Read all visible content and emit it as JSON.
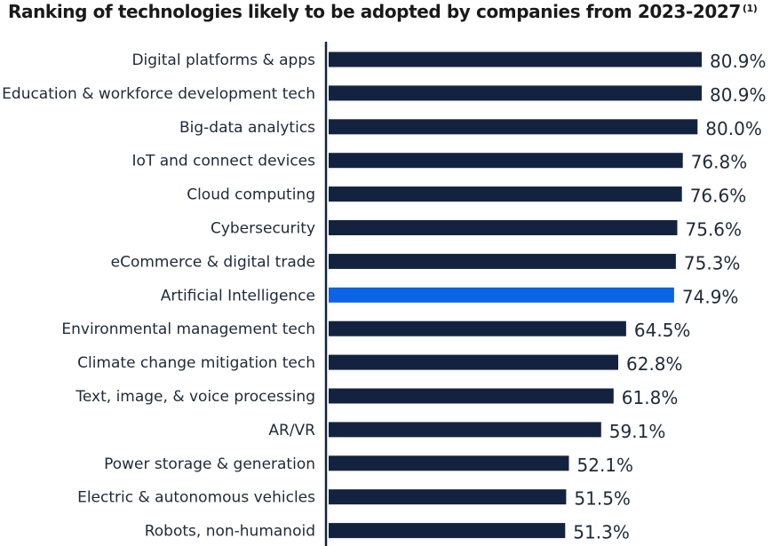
{
  "chart_data": {
    "type": "bar",
    "orientation": "horizontal",
    "title": "Ranking of technologies likely to be adopted by companies from 2023-2027",
    "title_footnote": "(1)",
    "xlabel": "",
    "ylabel": "",
    "value_suffix": "%",
    "xlim": [
      0,
      80.9
    ],
    "grid": false,
    "categories": [
      "Digital platforms & apps",
      "Education & workforce development tech",
      "Big-data analytics",
      "IoT and connect devices",
      "Cloud computing",
      "Cybersecurity",
      "eCommerce & digital trade",
      "Artificial Intelligence",
      "Environmental management tech",
      "Climate change mitigation tech",
      "Text, image, & voice processing",
      "AR/VR",
      "Power storage & generation",
      "Electric & autonomous vehicles",
      "Robots, non-humanoid"
    ],
    "values": [
      80.9,
      80.9,
      80.0,
      76.8,
      76.6,
      75.6,
      75.3,
      74.9,
      64.5,
      62.8,
      61.8,
      59.1,
      52.1,
      51.5,
      51.3
    ],
    "value_labels": [
      "80.9%",
      "80.9%",
      "80.0%",
      "76.8%",
      "76.6%",
      "75.6%",
      "75.3%",
      "74.9%",
      "64.5%",
      "62.8%",
      "61.8%",
      "59.1%",
      "52.1%",
      "51.5%",
      "51.3%"
    ],
    "highlight_category": "Artificial Intelligence",
    "colors": {
      "bar": "#13233f",
      "highlight": "#0b63e5",
      "axis": "#13233f",
      "text": "#1f2a38"
    }
  }
}
